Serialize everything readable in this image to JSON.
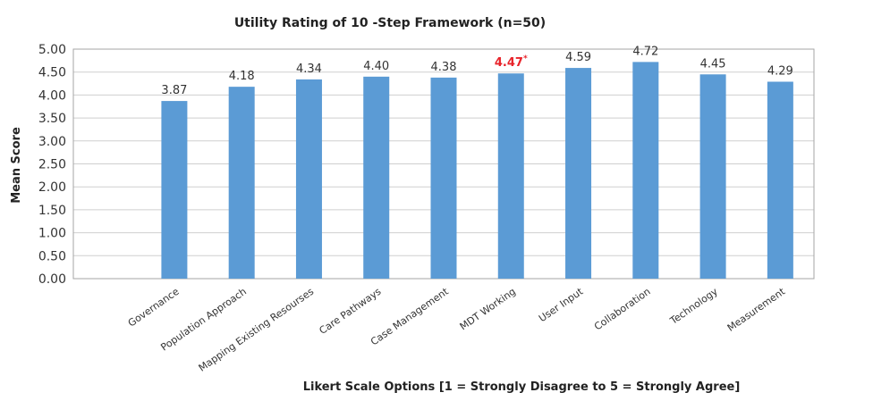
{
  "chart_data": {
    "type": "bar",
    "title": "Utility Rating  of 10 -Step Framework (n=50)",
    "xlabel": "Likert Scale Options  [1 = Strongly Disagree to 5 = Strongly Agree]",
    "ylabel": "Mean Score",
    "ylim": [
      0,
      5
    ],
    "yticks": [
      "0.00",
      "0.50",
      "1.00",
      "1.50",
      "2.00",
      "2.50",
      "3.00",
      "3.50",
      "4.00",
      "4.50",
      "5.00"
    ],
    "grid": true,
    "legend": "none",
    "categories": [
      "",
      "Governance",
      "Population Approach",
      "Mapping Existing Resourses",
      "Care Pathways",
      "Case Management",
      "MDT Working",
      "User Input",
      "Collaboration",
      "Technology",
      "Measurement"
    ],
    "values": [
      null,
      3.87,
      4.18,
      4.34,
      4.4,
      4.38,
      4.47,
      4.59,
      4.72,
      4.45,
      4.29
    ],
    "data_labels": [
      "",
      "3.87",
      "4.18",
      "4.34",
      "4.40",
      "4.38",
      "4.47*",
      "4.59",
      "4.72",
      "4.45",
      "4.29"
    ],
    "highlighted_label_index": 6,
    "colors": {
      "bar": "#5b9bd5",
      "highlight_label": "#e8232a",
      "grid": "#cfcfcf",
      "frame": "#a6a6a6"
    }
  }
}
